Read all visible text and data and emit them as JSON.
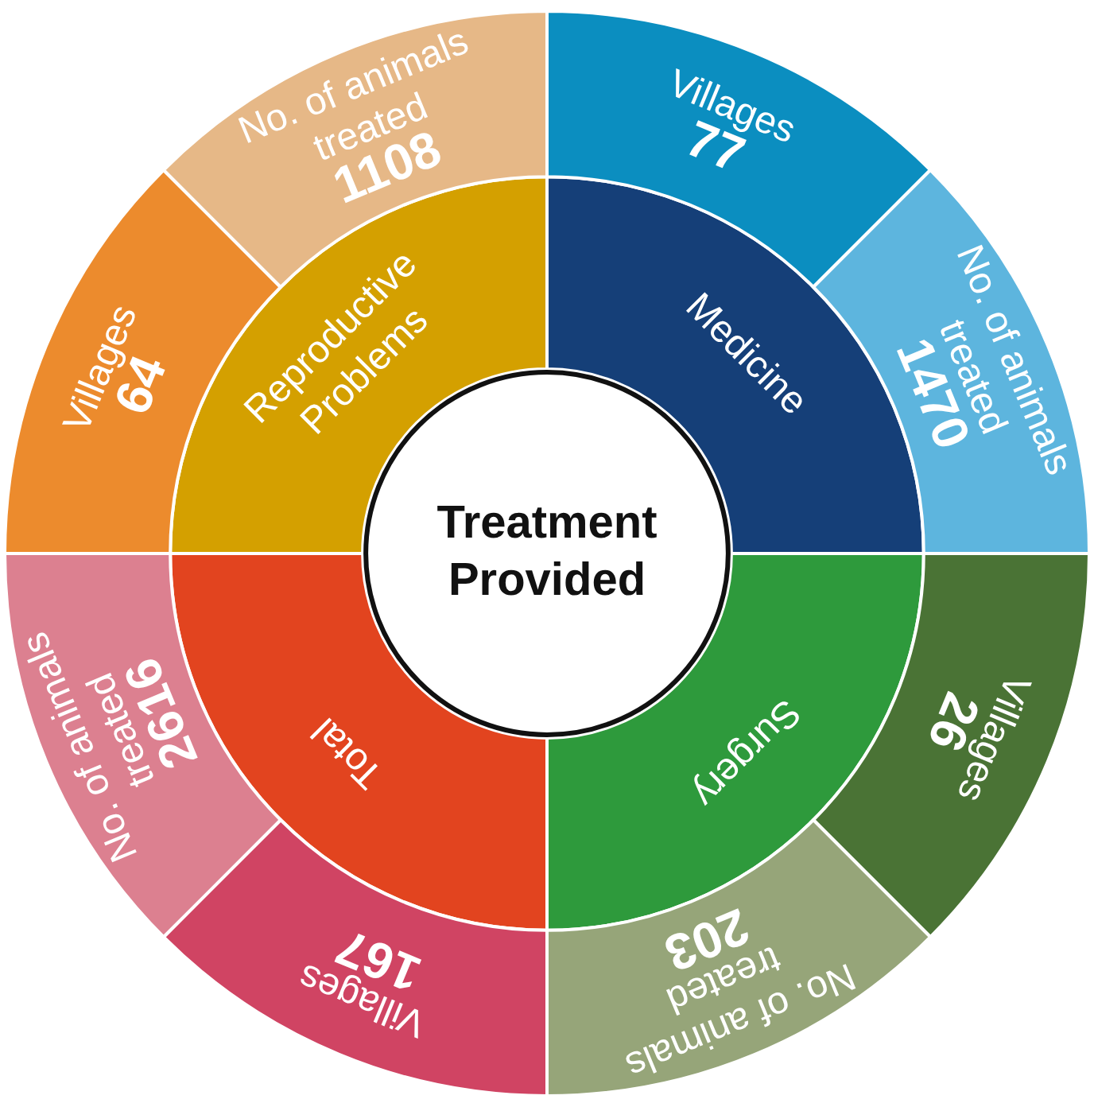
{
  "chart_data": {
    "type": "other",
    "title": "Treatment Provided",
    "categories": [
      "Medicine",
      "Surgery",
      "Total",
      "Reproductive Problems"
    ],
    "colors": [
      "#153f78",
      "#2e9a3c",
      "#e2441f",
      "#d4a000"
    ],
    "data_labels": true,
    "series": [
      {
        "name": "Villages",
        "values": [
          77,
          26,
          167,
          64
        ],
        "colors": [
          "#0b8ec0",
          "#4a7335",
          "#d04463",
          "#ec8b2d"
        ]
      },
      {
        "name": "No. of animals treated",
        "values": [
          1470,
          203,
          2616,
          1108
        ],
        "colors": [
          "#5db5de",
          "#96a579",
          "#dc8090",
          "#e6b887"
        ]
      }
    ]
  }
}
